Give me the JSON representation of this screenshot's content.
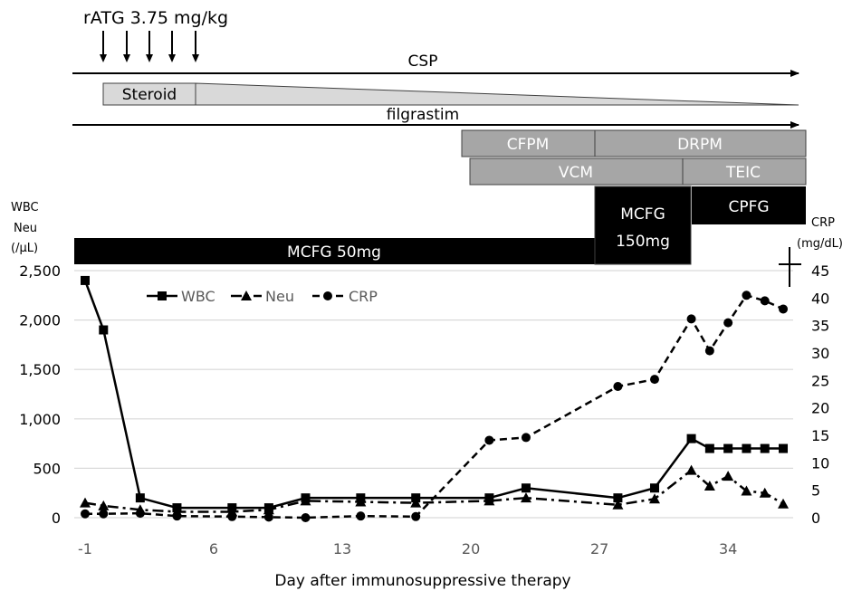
{
  "chart_data": {
    "type": "line",
    "title": "",
    "xlabel": "Day after immunosuppressive therapy",
    "ylabel_left": [
      "WBC",
      "Neu",
      "(/μL)"
    ],
    "ylabel_right": [
      "CRP",
      "(mg/dL)"
    ],
    "x_ticks": [
      "-1",
      "6",
      "13",
      "20",
      "27",
      "34"
    ],
    "x_tick_values": [
      -1,
      6,
      13,
      20,
      27,
      34
    ],
    "xlim": [
      -1,
      38
    ],
    "y_left_ticks": [
      "0",
      "500",
      "1,000",
      "1,500",
      "2,000",
      "2,500"
    ],
    "y_left_tick_values": [
      0,
      500,
      1000,
      1500,
      2000,
      2500
    ],
    "ylim_left": [
      0,
      2500
    ],
    "y_right_ticks": [
      "0",
      "5",
      "10",
      "15",
      "20",
      "25",
      "30",
      "35",
      "40",
      "45"
    ],
    "y_right_tick_values": [
      0,
      5,
      10,
      15,
      20,
      25,
      30,
      35,
      40,
      45
    ],
    "ylim_right": [
      0,
      45
    ],
    "grid": true,
    "legend": {
      "placement": "top-left",
      "entries": [
        "WBC",
        "Neu",
        "CRP"
      ]
    },
    "series": [
      {
        "name": "WBC",
        "axis": "left",
        "style": "solid",
        "marker": "square",
        "x": [
          -1,
          0,
          2,
          4,
          7,
          9,
          11,
          14,
          17,
          21,
          23,
          28,
          30,
          32,
          33,
          34,
          35,
          36,
          37
        ],
        "values": [
          2400,
          1900,
          200,
          100,
          100,
          100,
          200,
          200,
          200,
          200,
          300,
          200,
          300,
          800,
          700,
          700,
          700,
          700,
          700
        ]
      },
      {
        "name": "Neu",
        "axis": "left",
        "style": "dash-dot",
        "marker": "triangle",
        "x": [
          -1,
          0,
          2,
          4,
          7,
          9,
          11,
          14,
          17,
          21,
          23,
          28,
          30,
          32,
          33,
          34,
          35,
          36,
          37
        ],
        "values": [
          150,
          120,
          80,
          60,
          60,
          80,
          170,
          160,
          150,
          170,
          200,
          130,
          190,
          480,
          320,
          420,
          270,
          250,
          140
        ]
      },
      {
        "name": "CRP",
        "axis": "right",
        "style": "dashed",
        "marker": "circle",
        "x": [
          -1,
          0,
          2,
          4,
          7,
          9,
          11,
          14,
          17,
          21,
          23,
          28,
          30,
          32,
          33,
          34,
          35,
          36,
          37
        ],
        "values": [
          0.7,
          0.7,
          0.8,
          0.3,
          0.2,
          0.1,
          0.0,
          0.3,
          0.2,
          14.1,
          14.6,
          23.9,
          25.2,
          36.2,
          30.4,
          35.5,
          40.5,
          39.5,
          38.0
        ]
      }
    ],
    "annotations": {
      "ratg_label": "rATG 3.75 mg/kg",
      "ratg_days": [
        0,
        1,
        2,
        3,
        4
      ],
      "death_marker": "cross",
      "treatments": [
        {
          "label": "CSP",
          "kind": "arrow"
        },
        {
          "label": "Steroid",
          "kind": "taper"
        },
        {
          "label": "filgrastim",
          "kind": "arrow"
        },
        {
          "label": "CFPM",
          "kind": "gray-bar"
        },
        {
          "label": "DRPM",
          "kind": "gray-bar"
        },
        {
          "label": "VCM",
          "kind": "gray-bar"
        },
        {
          "label": "TEIC",
          "kind": "gray-bar"
        },
        {
          "label": "MCFG 50mg",
          "kind": "black-bar"
        },
        {
          "label": "MCFG",
          "label2": "150mg",
          "kind": "black-bar"
        },
        {
          "label": "CPFG",
          "kind": "black-bar"
        }
      ]
    },
    "colors": {
      "line": "#000000",
      "gray_bar": "#a6a6a6",
      "gray_bar_text": "#ffffff",
      "taper": "#d9d9d9",
      "black_bar": "#000000",
      "grid": "#d9d9d9",
      "tick_text": "#595959"
    }
  }
}
